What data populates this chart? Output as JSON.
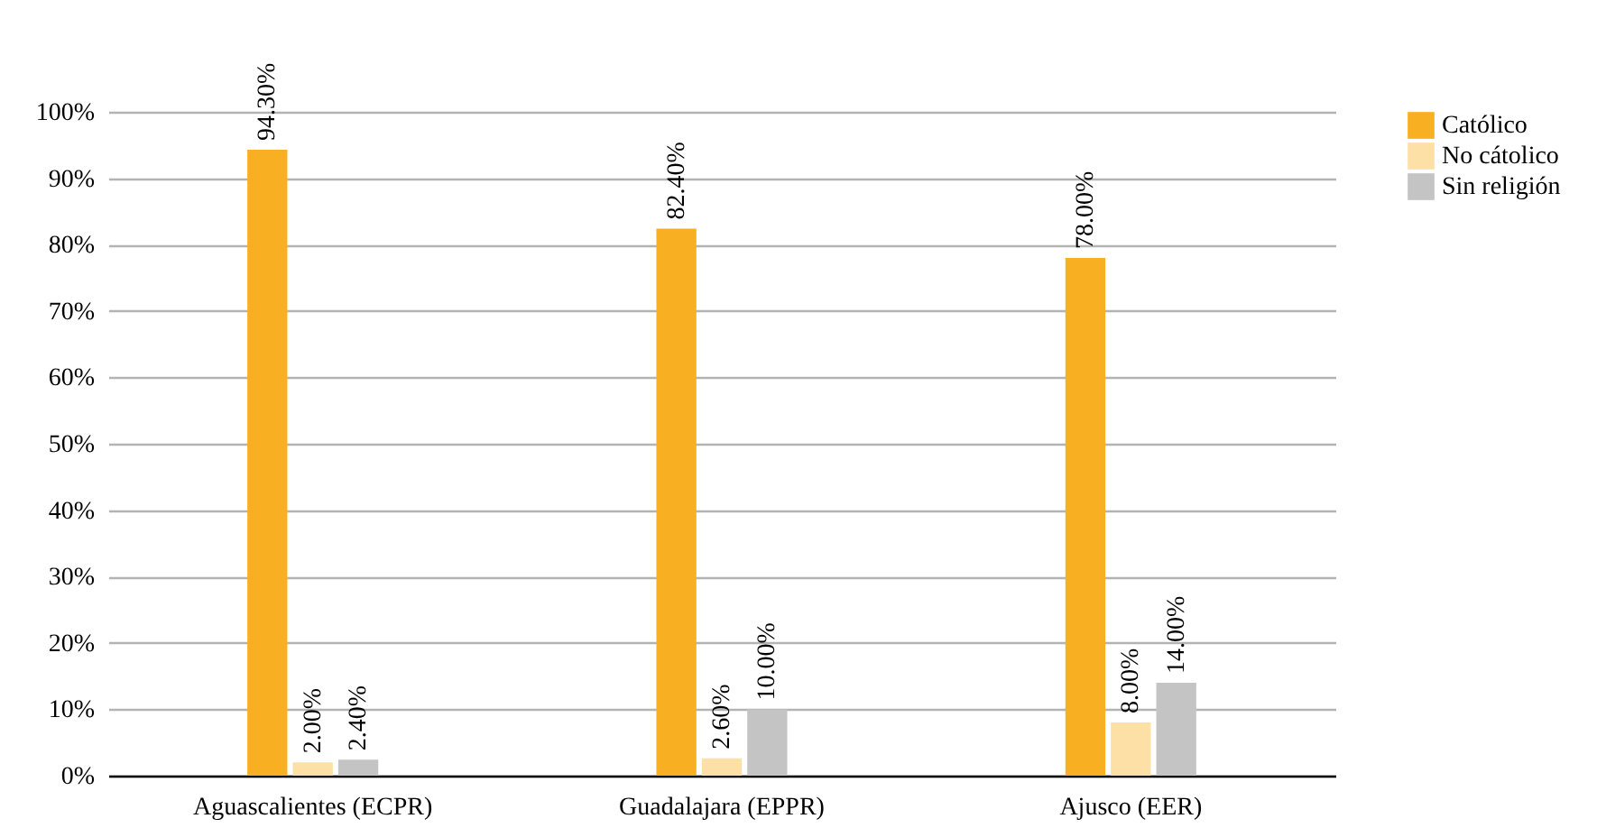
{
  "chart_data": {
    "type": "bar",
    "categories": [
      "Aguascalientes (ECPR)",
      "Guadalajara (EPPR)",
      "Ajusco (EER)"
    ],
    "series": [
      {
        "name": "Católico",
        "color": "#f8b022",
        "values": [
          94.3,
          82.4,
          78.0
        ],
        "value_labels": [
          "94.30%",
          "82.40%",
          "78.00%"
        ]
      },
      {
        "name": "No cátolico",
        "color": "#fde0a6",
        "values": [
          2.0,
          2.6,
          8.0
        ],
        "value_labels": [
          "2.00%",
          "2.60%",
          "8.00%"
        ]
      },
      {
        "name": "Sin religión",
        "color": "#c4c4c4",
        "values": [
          2.4,
          10.0,
          14.0
        ],
        "value_labels": [
          "2.40%",
          "10.00%",
          "14.00%"
        ]
      }
    ],
    "ylim": [
      0,
      100
    ],
    "yticks": [
      {
        "value": 0,
        "label": "0%"
      },
      {
        "value": 10,
        "label": "10%"
      },
      {
        "value": 20,
        "label": "20%"
      },
      {
        "value": 30,
        "label": "30%"
      },
      {
        "value": 40,
        "label": "40%"
      },
      {
        "value": 50,
        "label": "50%"
      },
      {
        "value": 60,
        "label": "60%"
      },
      {
        "value": 70,
        "label": "70%"
      },
      {
        "value": 80,
        "label": "80%"
      },
      {
        "value": 90,
        "label": "90%"
      },
      {
        "value": 100,
        "label": "100%"
      }
    ],
    "grid": "y",
    "legend": "right"
  }
}
